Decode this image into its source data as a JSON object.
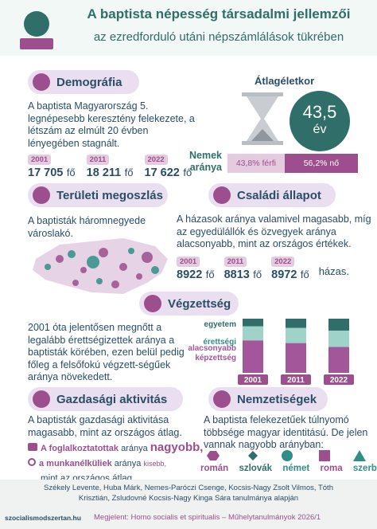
{
  "header": {
    "title": "A baptista népesség társadalmi jellemzői",
    "subtitle": "az ezredforduló utáni népszámlálások tükrében"
  },
  "demografia": {
    "heading": "Demográfia",
    "text": "A baptista Magyarország 5. legnépesebb keresztény felekezete, a létszám az elmúlt 20 évben lényegében stagnált.",
    "years": [
      {
        "year": "2001",
        "count": "17 705",
        "unit": "fő"
      },
      {
        "year": "2011",
        "count": "18 211",
        "unit": "fő"
      },
      {
        "year": "2022",
        "count": "17 622",
        "unit": "fő"
      }
    ]
  },
  "atlageletkor": {
    "heading": "Átlagéletkor",
    "value": "43,5",
    "unit": "év"
  },
  "nemek": {
    "label": "Nemek aránya",
    "segments": [
      {
        "value": 43.8,
        "label": "43,8% férfi",
        "color": "#e4cbe0"
      },
      {
        "value": 56.2,
        "label": "56,2% nő",
        "color": "#9d4f8d"
      }
    ]
  },
  "teruleti": {
    "heading": "Területi megoszlás",
    "text": "A baptisták háromnegyede városlakó."
  },
  "csaladi": {
    "heading": "Családi állapot",
    "text": "A házasok aránya valamivel magasabb, míg az egyedülállók és özvegyek aránya alacsonyabb, mint az országos értékek.",
    "years": [
      {
        "year": "2001",
        "count": "8922",
        "unit": "fő"
      },
      {
        "year": "2011",
        "count": "8813",
        "unit": "fő"
      },
      {
        "year": "2022",
        "count": "8972",
        "unit": "fő"
      }
    ],
    "suffix": "házas."
  },
  "vegzettseg": {
    "heading": "Végzettség",
    "text": "2001 óta jelentősen megnőtt a legalább érettségizettek aránya a baptisták körében, ezen belül pedig főleg a felsőfokú végzett-ségűek aránya növekedett.",
    "chart": {
      "type": "bar",
      "categories": [
        "2001",
        "2011",
        "2022"
      ],
      "series": [
        {
          "name": "alacsonyabb képzettség",
          "color": "#a3579a",
          "values": [
            60,
            55,
            48
          ]
        },
        {
          "name": "érettségi",
          "color": "#9fd3ca",
          "values": [
            26,
            28,
            30
          ]
        },
        {
          "name": "egyetem",
          "color": "#2f6e69",
          "values": [
            14,
            17,
            22
          ]
        }
      ]
    }
  },
  "gazdasagi": {
    "heading": "Gazdasági aktivitás",
    "text": "A baptisták gazdasági aktivitása magasabb, mint az országos átlag.",
    "line1": {
      "group": "A foglalkoztatottak",
      "word": "aránya",
      "trend": "nagyobb,"
    },
    "line2": {
      "group": "a munkanélküliek",
      "word": "aránya",
      "trend": "kisebb,"
    },
    "line3": "mint az országos átlag."
  },
  "nemzetiseg": {
    "heading": "Nemzetiségek",
    "text": "A baptista felekezetűek túlnyomó többsége magyar identitású. De jelen vannak nagyobb arányban:",
    "items": [
      "román",
      "szlovák",
      "német",
      "roma",
      "szerb"
    ]
  },
  "footer": {
    "authors": "Székely Levente, Huba Márk, Nemes-Paróczi Csenge, Kocsis-Nagy Zsolt Vilmos, Tóth Krisztián, Zsludovné Kocsis-Nagy Kinga Sára tanulmánya alapján",
    "url": "szocialismodszertan.hu",
    "source": "Megjelent: Homo socialis et spiritualis – Műhelytanulmányok 2026/1"
  }
}
